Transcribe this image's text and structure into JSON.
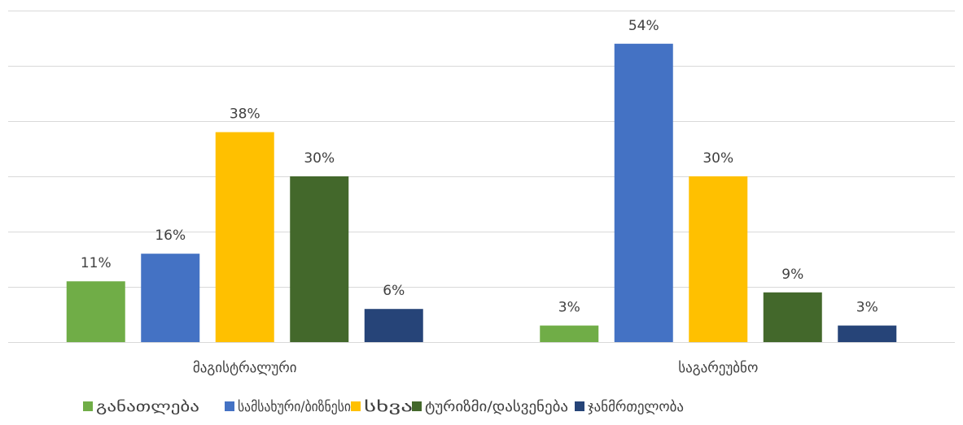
{
  "chart_data": {
    "type": "bar",
    "categories": [
      "მაგისტრალური",
      "საგარეუბნო"
    ],
    "series": [
      {
        "name": "განათლება",
        "values": [
          11,
          3
        ],
        "labels": [
          "11%",
          "3%"
        ],
        "color": "#70ad47"
      },
      {
        "name": "სამსახური/ბიზნესი",
        "values": [
          16,
          54
        ],
        "labels": [
          "16%",
          "54%"
        ],
        "color": "#4472c4"
      },
      {
        "name": "სხვა",
        "values": [
          38,
          30
        ],
        "labels": [
          "38%",
          "30%"
        ],
        "color": "#ffc000"
      },
      {
        "name": "ტურიზმი/დასვენება",
        "values": [
          30,
          9
        ],
        "labels": [
          "30%",
          "9%"
        ],
        "color": "#43682b"
      },
      {
        "name": "ჯანმრთელობა",
        "values": [
          6,
          3
        ],
        "labels": [
          "6%",
          "3%"
        ],
        "color": "#264478"
      }
    ],
    "title": "",
    "xlabel": "",
    "ylabel": "",
    "ylim": [
      0,
      60
    ],
    "grid": true,
    "legend": "bottom"
  }
}
